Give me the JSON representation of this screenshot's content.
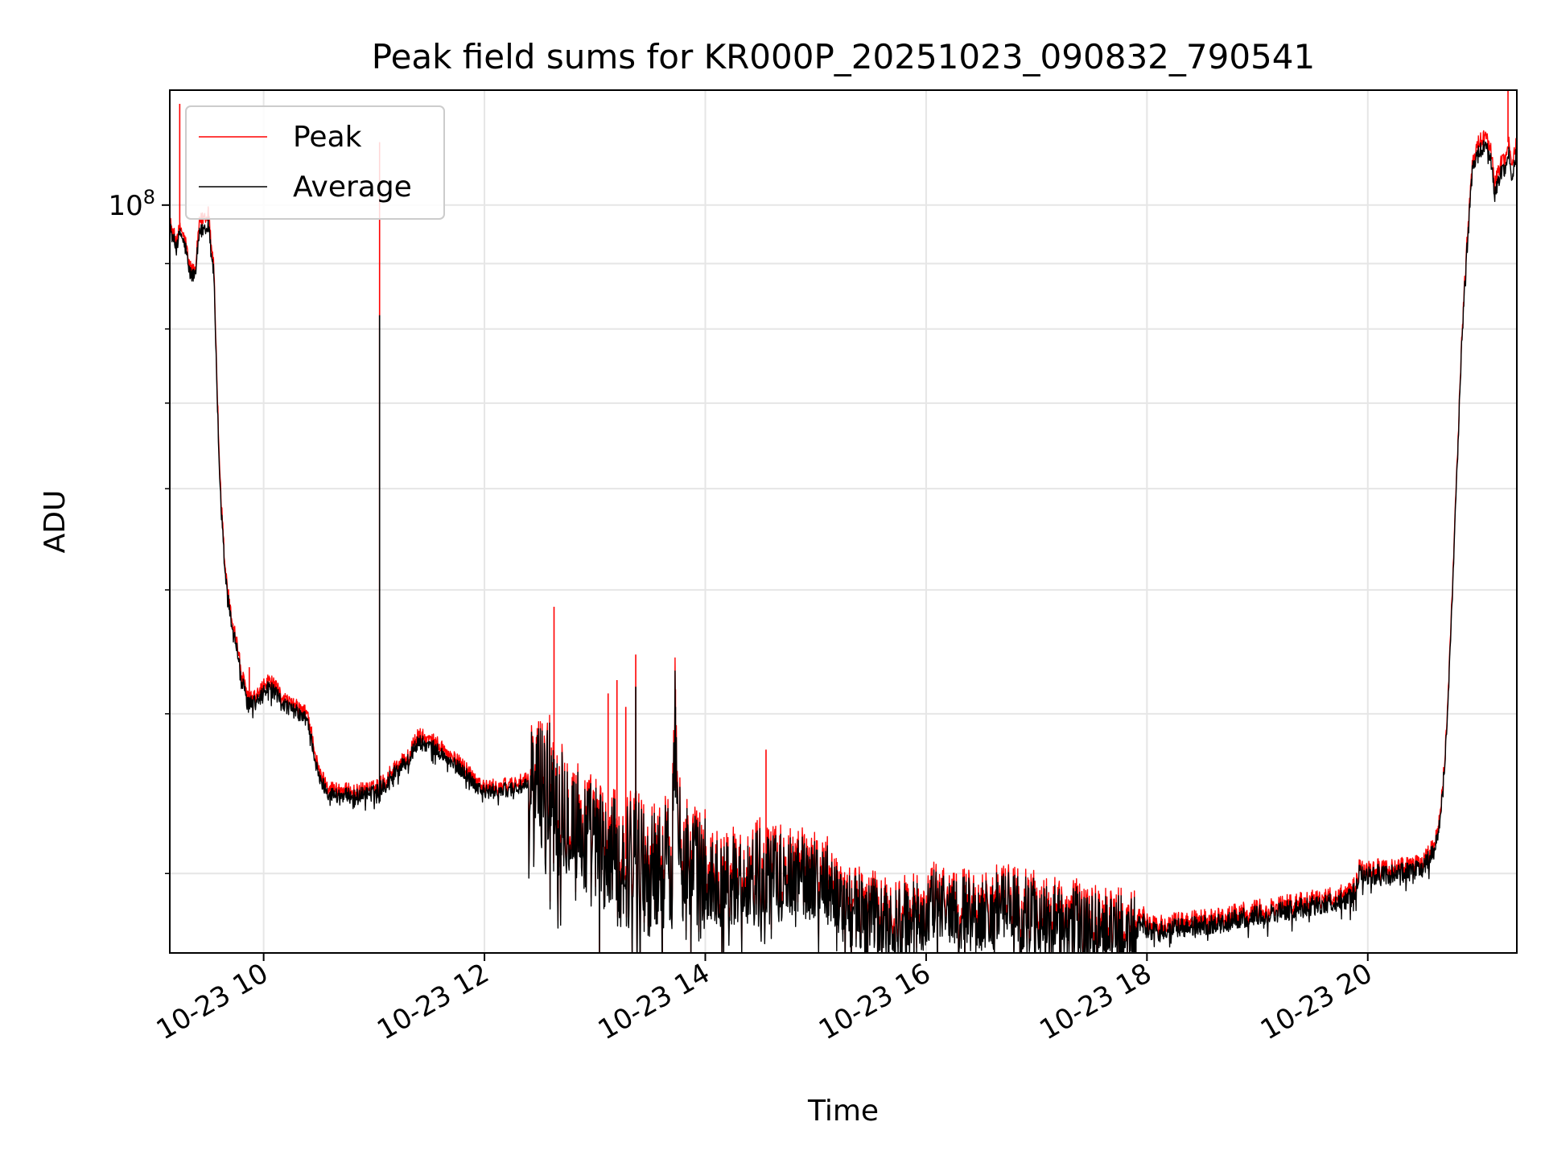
{
  "chart_data": {
    "type": "line",
    "title": "Peak field sums for KR000P_20251023_090832_790541",
    "xlabel": "Time",
    "ylabel": "ADU",
    "yscale": "log",
    "xlim_hours": [
      9.15,
      21.35
    ],
    "ylim": [
      26000000,
      123000000
    ],
    "x_ticks": [
      {
        "value": 10,
        "label": "10-23 10"
      },
      {
        "value": 12,
        "label": "10-23 12"
      },
      {
        "value": 14,
        "label": "10-23 14"
      },
      {
        "value": 16,
        "label": "10-23 16"
      },
      {
        "value": 18,
        "label": "10-23 18"
      },
      {
        "value": 20,
        "label": "10-23 20"
      }
    ],
    "y_major_ticks": [
      {
        "value": 100000000,
        "base": "10",
        "exponent": "8"
      }
    ],
    "y_minor_ticks": [
      30000000,
      40000000,
      50000000,
      60000000,
      70000000,
      80000000,
      90000000
    ],
    "grid": true,
    "legend_position": "top-left",
    "series": [
      {
        "name": "Peak",
        "color": "#ff0000",
        "x": [
          9.15,
          9.2,
          9.25,
          9.3,
          9.32,
          9.35,
          9.38,
          9.42,
          9.5,
          9.55,
          9.6,
          9.65,
          9.7,
          9.75,
          9.8,
          9.85,
          9.9,
          9.95,
          10.0,
          10.05,
          10.1,
          10.2,
          10.3,
          10.4,
          10.45,
          10.5,
          10.6,
          10.8,
          11.0,
          11.1,
          11.15,
          11.2,
          11.3,
          11.4,
          11.5,
          11.6,
          11.7,
          11.8,
          12.0,
          12.2,
          12.4,
          12.6,
          12.7,
          12.8,
          12.9,
          13.0,
          13.1,
          13.2,
          13.3,
          13.35,
          13.4,
          13.5,
          13.6,
          13.7,
          13.72,
          13.76,
          13.8,
          13.9,
          14.0,
          14.2,
          14.4,
          14.5,
          14.56,
          14.6,
          14.8,
          15.0,
          15.1,
          15.2,
          15.3,
          15.5,
          15.7,
          15.9,
          16.0,
          16.1,
          16.3,
          16.5,
          16.7,
          16.9,
          17.1,
          17.3,
          17.5,
          17.7,
          17.9,
          17.95,
          18.0,
          18.1,
          18.3,
          18.5,
          18.7,
          18.9,
          19.1,
          19.3,
          19.5,
          19.7,
          19.85,
          19.9,
          19.92,
          20.0,
          20.2,
          20.4,
          20.5,
          20.6,
          20.65,
          20.7,
          20.75,
          20.8,
          20.85,
          20.9,
          20.95,
          21.0,
          21.05,
          21.1,
          21.15,
          21.18,
          21.2,
          21.25,
          21.28,
          21.3,
          21.35
        ],
        "values": [
          97000000,
          94000000,
          96000000,
          93000000,
          90000000,
          89000000,
          89000000,
          97000000,
          99000000,
          89000000,
          62000000,
          52000000,
          48000000,
          46000000,
          43000000,
          41500000,
          41000000,
          41500000,
          42000000,
          42500000,
          42000000,
          41000000,
          40500000,
          40000000,
          38000000,
          36000000,
          35000000,
          34800000,
          35000000,
          35500000,
          36000000,
          36500000,
          37000000,
          38500000,
          38200000,
          37800000,
          37000000,
          36500000,
          35000000,
          35200000,
          35500000,
          35800000,
          34500000,
          33500000,
          32500000,
          32000000,
          31500000,
          31000000,
          30800000,
          32500000,
          31000000,
          30500000,
          31000000,
          30700000,
          41000000,
          35000000,
          31000000,
          30500000,
          30000000,
          30200000,
          30000000,
          31000000,
          30500000,
          30200000,
          30500000,
          30200000,
          30000000,
          29000000,
          28500000,
          28200000,
          27800000,
          28000000,
          28300000,
          28700000,
          28400000,
          28200000,
          28600000,
          28300000,
          28000000,
          27800000,
          27600000,
          27400000,
          27200000,
          28000000,
          27400000,
          27300000,
          27500000,
          27600000,
          27800000,
          28000000,
          28200000,
          28400000,
          28600000,
          28800000,
          29000000,
          29500000,
          30200000,
          30200000,
          30300000,
          30400000,
          30600000,
          31500000,
          33000000,
          37000000,
          46000000,
          60000000,
          78000000,
          95000000,
          108000000,
          112000000,
          113000000,
          113000000,
          104000000,
          106000000,
          108000000,
          109000000,
          112000000,
          108000000,
          112000000
        ],
        "spikes": [
          {
            "x": 9.24,
            "value": 120000000
          },
          {
            "x": 9.87,
            "value": 43500000
          },
          {
            "x": 11.05,
            "value": 112000000
          },
          {
            "x": 12.63,
            "value": 48500000
          },
          {
            "x": 13.12,
            "value": 41500000
          },
          {
            "x": 13.2,
            "value": 42500000
          },
          {
            "x": 13.28,
            "value": 40500000
          },
          {
            "x": 13.37,
            "value": 44500000
          },
          {
            "x": 13.73,
            "value": 41800000
          },
          {
            "x": 14.55,
            "value": 37500000
          },
          {
            "x": 21.27,
            "value": 123000000
          }
        ]
      },
      {
        "name": "Average",
        "color": "#000000",
        "x": [
          9.15,
          9.2,
          9.25,
          9.3,
          9.32,
          9.35,
          9.38,
          9.42,
          9.5,
          9.55,
          9.6,
          9.65,
          9.7,
          9.75,
          9.8,
          9.85,
          9.9,
          9.95,
          10.0,
          10.05,
          10.1,
          10.2,
          10.3,
          10.4,
          10.45,
          10.5,
          10.6,
          10.8,
          11.0,
          11.1,
          11.15,
          11.2,
          11.3,
          11.4,
          11.5,
          11.6,
          11.7,
          11.8,
          12.0,
          12.2,
          12.4,
          12.6,
          12.7,
          12.8,
          12.9,
          13.0,
          13.1,
          13.2,
          13.3,
          13.35,
          13.4,
          13.5,
          13.6,
          13.7,
          13.72,
          13.76,
          13.8,
          13.9,
          14.0,
          14.2,
          14.4,
          14.5,
          14.56,
          14.6,
          14.8,
          15.0,
          15.1,
          15.2,
          15.3,
          15.5,
          15.7,
          15.9,
          16.0,
          16.1,
          16.3,
          16.5,
          16.7,
          16.9,
          17.1,
          17.3,
          17.5,
          17.7,
          17.9,
          17.95,
          18.0,
          18.1,
          18.3,
          18.5,
          18.7,
          18.9,
          19.1,
          19.3,
          19.5,
          19.7,
          19.85,
          19.9,
          19.92,
          20.0,
          20.2,
          20.4,
          20.5,
          20.6,
          20.65,
          20.7,
          20.75,
          20.8,
          20.85,
          20.9,
          20.95,
          21.0,
          21.05,
          21.1,
          21.15,
          21.18,
          21.2,
          21.25,
          21.28,
          21.3,
          21.35
        ],
        "values": [
          96000000,
          93000000,
          95000000,
          92000000,
          89000000,
          88000000,
          88500000,
          95000000,
          97000000,
          88000000,
          61000000,
          51500000,
          47500000,
          45500000,
          42500000,
          41000000,
          40700000,
          41000000,
          41500000,
          42000000,
          41500000,
          40600000,
          40100000,
          39500000,
          37500000,
          35600000,
          34600000,
          34500000,
          34700000,
          35200000,
          35700000,
          36200000,
          36700000,
          38000000,
          37800000,
          37300000,
          36600000,
          36100000,
          34700000,
          34900000,
          35100000,
          35300000,
          34000000,
          33000000,
          32000000,
          31500000,
          31000000,
          30500000,
          30300000,
          31800000,
          30500000,
          30000000,
          30500000,
          30200000,
          40000000,
          34400000,
          30500000,
          30000000,
          29500000,
          29700000,
          29500000,
          30400000,
          30000000,
          29700000,
          30000000,
          29700000,
          29500000,
          28600000,
          28100000,
          27800000,
          27400000,
          27600000,
          27900000,
          28300000,
          28000000,
          27800000,
          28200000,
          27900000,
          27600000,
          27400000,
          27200000,
          27000000,
          26900000,
          27600000,
          27100000,
          27000000,
          27200000,
          27300000,
          27500000,
          27700000,
          27900000,
          28100000,
          28300000,
          28500000,
          28700000,
          29200000,
          29900000,
          29900000,
          30000000,
          30100000,
          30300000,
          31200000,
          32700000,
          36700000,
          45500000,
          59500000,
          77500000,
          94000000,
          107000000,
          110000000,
          111000000,
          111000000,
          102000000,
          104000000,
          106000000,
          107000000,
          110000000,
          105000000,
          110000000
        ],
        "spikes": [
          {
            "x": 11.05,
            "value": 82000000
          },
          {
            "x": 13.37,
            "value": 42000000
          },
          {
            "x": 13.73,
            "value": 40500000
          }
        ]
      }
    ]
  }
}
